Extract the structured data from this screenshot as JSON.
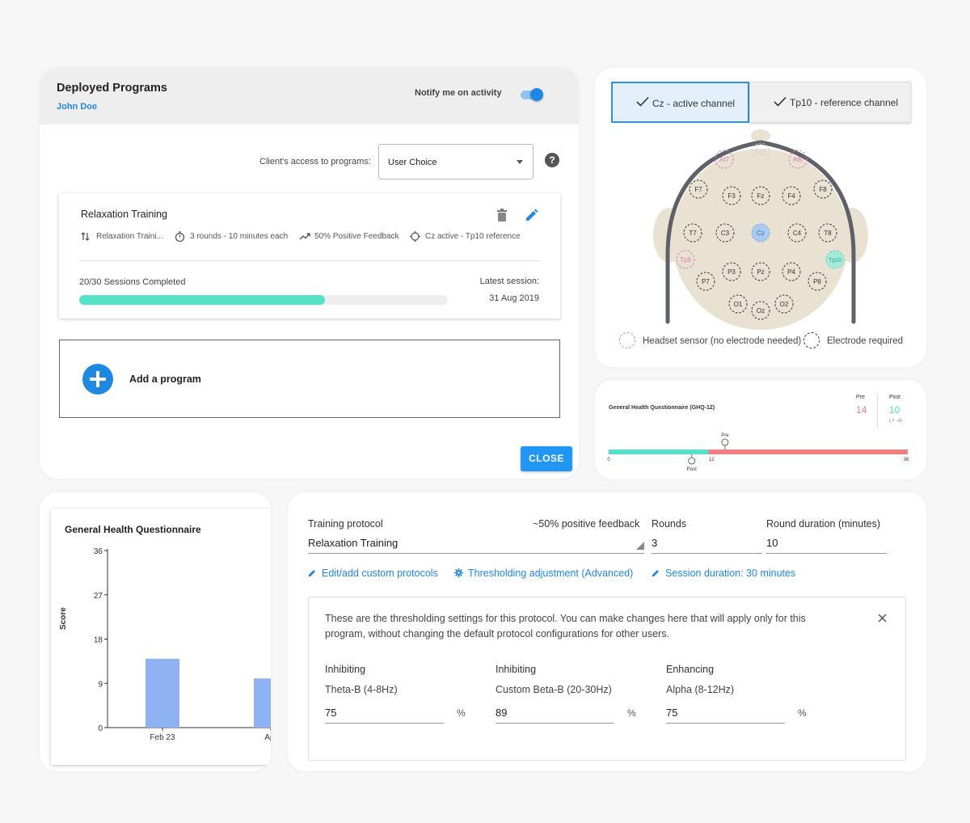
{
  "programs_panel": {
    "title": "Deployed Programs",
    "user": "John Doe",
    "notify_label": "Notify me on activity",
    "notify_enabled": true,
    "access_label": "Client's access to programs:",
    "access_value": "User Choice",
    "help_symbol": "?",
    "program": {
      "name": "Relaxation Training",
      "protocol": "Relaxation Traini...",
      "rounds": "3 rounds - 10 minutes each",
      "feedback": "50% Positive Feedback",
      "channels": "Cz active - Tp10 reference",
      "sessions": "20/30 Sessions Completed",
      "sessions_completed": 20,
      "sessions_total": 30,
      "latest_label": "Latest session:",
      "latest_date": "31 Aug 2019"
    },
    "add_label": "Add a program",
    "close_label": "CLOSE",
    "accent": "#1e88e5",
    "progress_color": "#55e0c8"
  },
  "electrode_panel": {
    "active_channel": "Cz - active channel",
    "reference_channel": "Tp10 - reference channel",
    "electrodes": [
      {
        "label": "Fpz",
        "type": "headset-faint"
      },
      {
        "label": "Af7",
        "type": "headset"
      },
      {
        "label": "Af8",
        "type": "headset"
      },
      {
        "label": "F7",
        "type": "electrode"
      },
      {
        "label": "F3",
        "type": "electrode"
      },
      {
        "label": "Fz",
        "type": "electrode"
      },
      {
        "label": "F4",
        "type": "electrode"
      },
      {
        "label": "F8",
        "type": "electrode"
      },
      {
        "label": "T7",
        "type": "electrode"
      },
      {
        "label": "C3",
        "type": "electrode"
      },
      {
        "label": "Cz",
        "type": "active"
      },
      {
        "label": "C4",
        "type": "electrode"
      },
      {
        "label": "T8",
        "type": "electrode"
      },
      {
        "label": "Tp9",
        "type": "headset"
      },
      {
        "label": "Tp10",
        "type": "reference"
      },
      {
        "label": "P7",
        "type": "electrode"
      },
      {
        "label": "P3",
        "type": "electrode"
      },
      {
        "label": "Pz",
        "type": "electrode"
      },
      {
        "label": "P4",
        "type": "electrode"
      },
      {
        "label": "P8",
        "type": "electrode"
      },
      {
        "label": "O1",
        "type": "electrode"
      },
      {
        "label": "Oz",
        "type": "electrode"
      },
      {
        "label": "O2",
        "type": "electrode"
      }
    ],
    "legend_headset": "Headset sensor (no electrode needed)",
    "legend_electrode": "Electrode required",
    "colors": {
      "headset": "#d77ab8",
      "active": "#6aa8e6",
      "reference": "#4fd6b8",
      "scalp": "#e9e1d2"
    }
  },
  "ghq12": {
    "title": "General Health Questionnaire (GHQ-12)",
    "pre_label": "Pre",
    "post_label": "Post",
    "pre_value": 14,
    "post_value": 10,
    "change": "(↗ -4)",
    "scale_min": "0",
    "scale_mid": "12",
    "scale_max": "36",
    "threshold_value": 12,
    "max_value": 36,
    "pre_color": "#f08080",
    "post_color": "#55e0c8"
  },
  "chart_panel": {
    "title": "General Health Questionnaire"
  },
  "chart_data": {
    "type": "bar",
    "title": "General Health Questionnaire",
    "xlabel": "",
    "ylabel": "Score",
    "categories": [
      "Feb 23",
      "Apr"
    ],
    "values": [
      14,
      10
    ],
    "yticks": [
      "0",
      "9",
      "18",
      "27",
      "36"
    ],
    "ylim": [
      0,
      36
    ],
    "color": "#8fb2f2"
  },
  "protocol_panel": {
    "protocol_label": "Training protocol",
    "protocol_value": "Relaxation Training",
    "feedback_label": "~50% positive feedback",
    "rounds_label": "Rounds",
    "rounds_value": "3",
    "duration_label": "Round duration (minutes)",
    "duration_value": "10",
    "link_edit": "Edit/add custom protocols",
    "link_threshold": "Thresholding adjustment (Advanced)",
    "link_session": "Session duration: 30 minutes",
    "threshold_text": "These are the thresholding settings for this protocol. You can make changes here that will apply only for this program, without changing the default protocol configurations for other users.",
    "bands": [
      {
        "title": "Inhibiting",
        "name": "Theta-B (4-8Hz)",
        "value": "75",
        "unit": "%"
      },
      {
        "title": "Inhibiting",
        "name": "Custom Beta-B (20-30Hz)",
        "value": "89",
        "unit": "%"
      },
      {
        "title": "Enhancing",
        "name": "Alpha (8-12Hz)",
        "value": "75",
        "unit": "%"
      }
    ]
  }
}
